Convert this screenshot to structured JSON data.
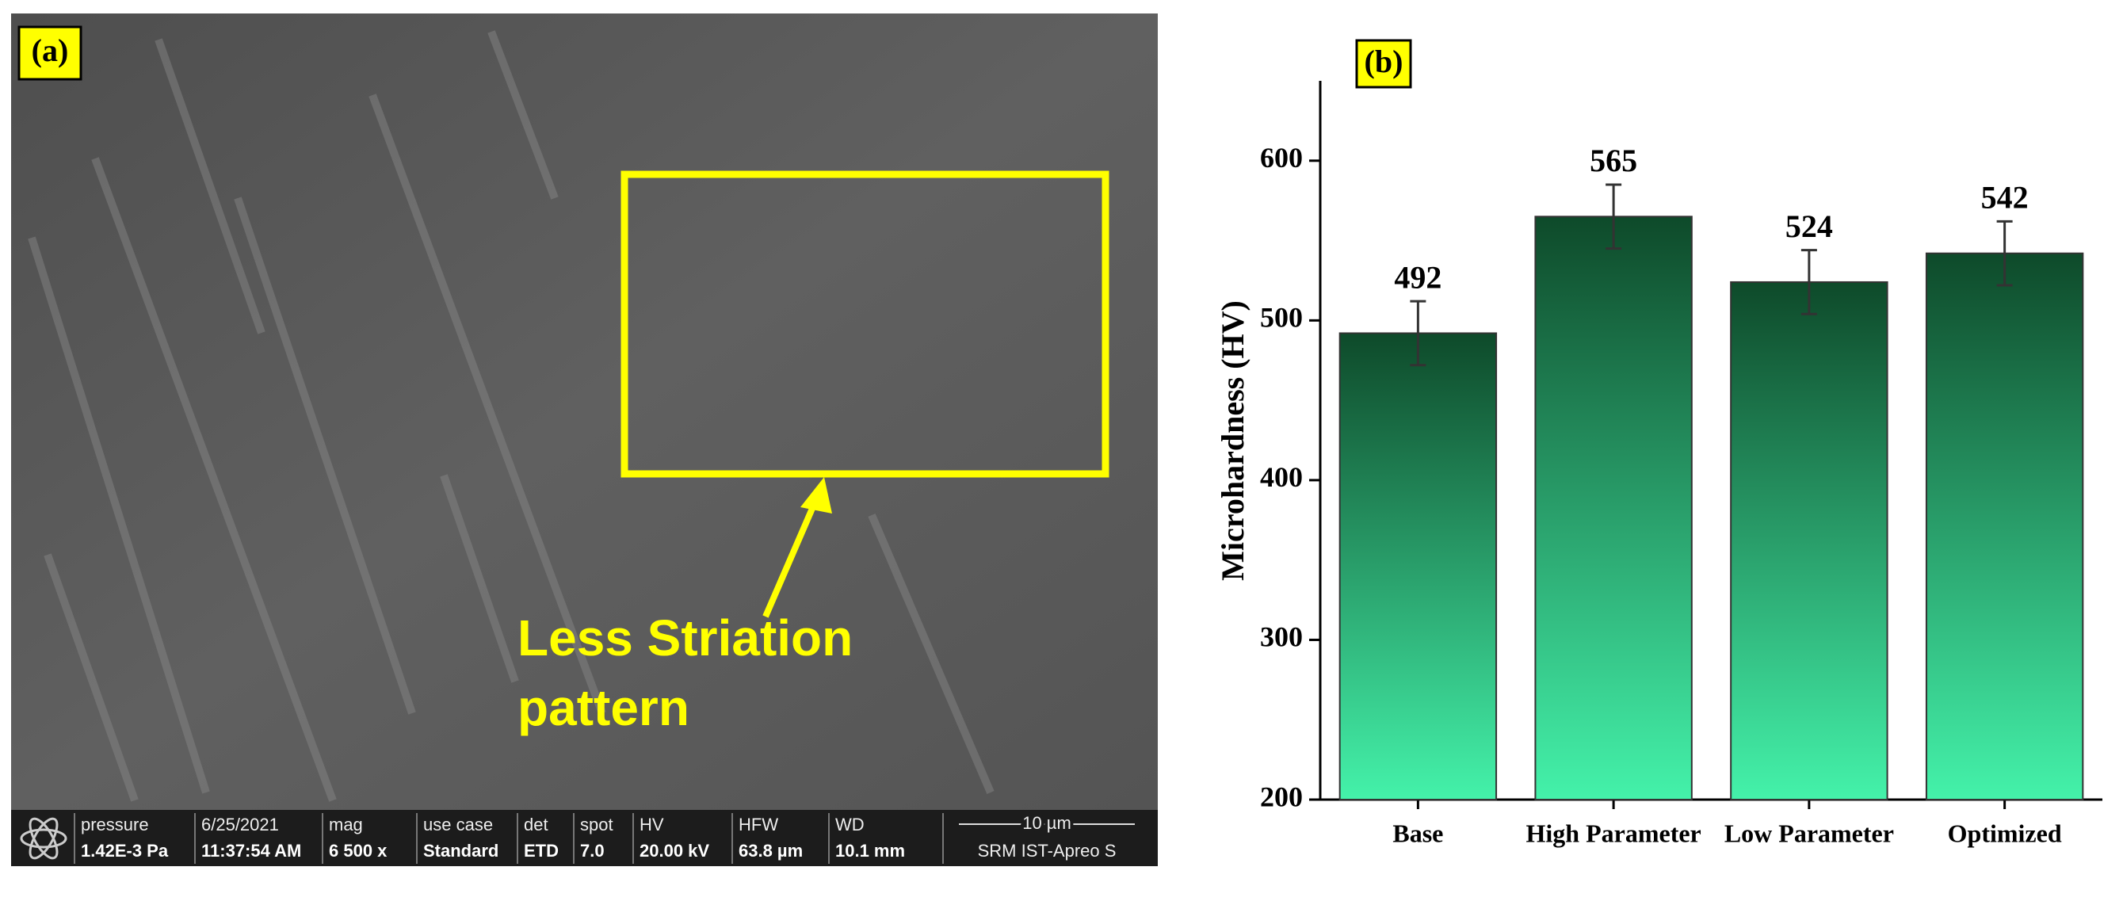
{
  "panel_a": {
    "label": "(a)",
    "annotation": [
      "Less Striation",
      "pattern"
    ],
    "info_bar": [
      {
        "label": "pressure",
        "value": "1.42E-3 Pa"
      },
      {
        "label": "6/25/2021",
        "value": "11:37:54 AM"
      },
      {
        "label": "mag",
        "value": "6 500 x"
      },
      {
        "label": "use case",
        "value": "Standard"
      },
      {
        "label": "det",
        "value": "ETD"
      },
      {
        "label": "spot",
        "value": "7.0"
      },
      {
        "label": "HV",
        "value": "20.00 kV"
      },
      {
        "label": "HFW",
        "value": "63.8 µm"
      },
      {
        "label": "WD",
        "value": "10.1 mm"
      }
    ],
    "scale_bar": "10 µm",
    "instrument": "SRM IST-Apreo S"
  },
  "chart_data": {
    "type": "bar",
    "panel_label": "(b)",
    "y_label": "Microhardness (HV)",
    "categories": [
      "Base",
      "High Parameter",
      "Low Parameter",
      "Optimized"
    ],
    "values": [
      492,
      565,
      524,
      542
    ],
    "errors": [
      20,
      20,
      20,
      20
    ],
    "color_top": "#0e4a2a",
    "color_bottom": "#44f2aa",
    "ylim": [
      200,
      650
    ],
    "yticks": [
      200,
      300,
      400,
      500,
      600
    ],
    "grid": false
  }
}
